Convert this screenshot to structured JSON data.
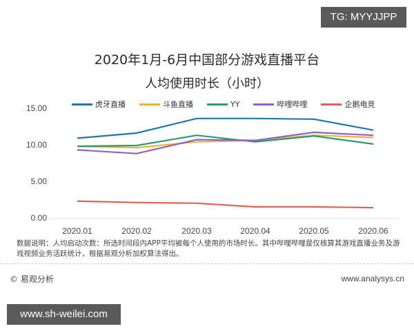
{
  "badges": {
    "top_right": "TG: MYYJJPP",
    "bottom_left": "www.sh-weilei.com"
  },
  "header": {
    "title_line1": "2020年1月-6月中国部分游戏直播平台",
    "title_line2": "人均使用时长（小时）"
  },
  "legend": [
    {
      "label": "虎牙直播",
      "color": "#1f77a8"
    },
    {
      "label": "斗鱼直播",
      "color": "#f0b030"
    },
    {
      "label": "YY",
      "color": "#2a9a6e"
    },
    {
      "label": "哔哩哔哩",
      "color": "#8a63c6"
    },
    {
      "label": "企鹅电竞",
      "color": "#e0605a"
    }
  ],
  "axes": {
    "y_ticks": [
      "15.00",
      "10.00",
      "5.00",
      "0.00"
    ],
    "x_ticks": [
      "2020.01",
      "2020.02",
      "2020.03",
      "2020.04",
      "2020.05",
      "2020.06"
    ]
  },
  "note": {
    "text": "数据说明：人均启动次数：所选时间段内APP平均被每个人使用的市场时长。其中哔哩哔哩是仅核算其游戏直播业务及游戏视频业务活跃统计，根据易观分析加权算法得出。"
  },
  "footer": {
    "source": "© 易观分析",
    "url": "www.analysys.cn"
  },
  "chart_data": {
    "type": "line",
    "title": "2020年1月-6月中国部分游戏直播平台 人均使用时长（小时）",
    "xlabel": "",
    "ylabel": "小时",
    "ylim": [
      0,
      15
    ],
    "grid": false,
    "legend_position": "top",
    "categories": [
      "2020.01",
      "2020.02",
      "2020.03",
      "2020.04",
      "2020.05",
      "2020.06"
    ],
    "series": [
      {
        "name": "虎牙直播",
        "color": "#1f77a8",
        "values": [
          11.0,
          11.7,
          13.7,
          13.7,
          13.6,
          12.1
        ]
      },
      {
        "name": "斗鱼直播",
        "color": "#f0b030",
        "values": [
          9.9,
          9.7,
          10.5,
          10.7,
          11.4,
          11.1
        ]
      },
      {
        "name": "YY",
        "color": "#2a9a6e",
        "values": [
          9.9,
          10.0,
          11.4,
          10.5,
          11.3,
          10.2
        ]
      },
      {
        "name": "哔哩哔哩",
        "color": "#8a63c6",
        "values": [
          9.4,
          8.9,
          10.8,
          10.7,
          11.8,
          11.4
        ]
      },
      {
        "name": "企鹅电竞",
        "color": "#e0605a",
        "values": [
          2.4,
          2.2,
          2.1,
          1.6,
          1.6,
          1.5
        ]
      }
    ]
  }
}
